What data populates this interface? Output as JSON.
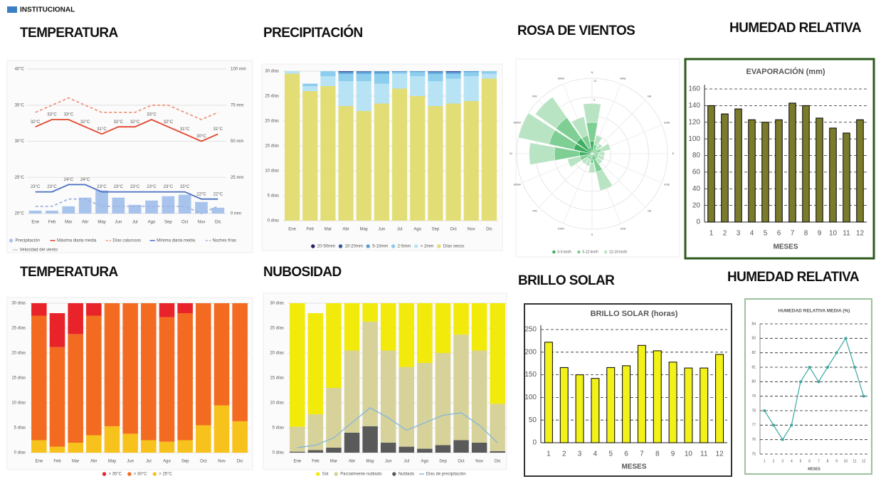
{
  "header": "INSTITUCIONAL",
  "chart_data": [
    {
      "type": "combo",
      "title": "TEMPERATURA",
      "categories": [
        "Ene",
        "Feb",
        "Mar",
        "Abr",
        "May",
        "Jun",
        "Jul",
        "Ago",
        "Sep",
        "Oct",
        "Nov",
        "Dic"
      ],
      "ylim": [
        20,
        40
      ],
      "yticks": [
        {
          "value": 20,
          "label": "20°C"
        },
        {
          "value": 25,
          "label": "25°C"
        },
        {
          "value": 30,
          "label": "30°C"
        },
        {
          "value": 35,
          "label": "35°C"
        },
        {
          "value": 40,
          "label": "40°C"
        }
      ],
      "y2lim": [
        0,
        100
      ],
      "y2ticks": [
        {
          "value": 0,
          "label": "0 mm"
        },
        {
          "value": 25,
          "label": "25 mm"
        },
        {
          "value": 50,
          "label": "50 mm"
        },
        {
          "value": 75,
          "label": "75 mm"
        },
        {
          "value": 100,
          "label": "100 mm"
        }
      ],
      "grid": true,
      "series": [
        {
          "name": "Precipitación",
          "kind": "bar",
          "axis": "y2",
          "color": "#a9c4ec",
          "values": [
            2,
            2,
            5,
            11,
            16,
            11,
            6,
            9,
            12,
            13,
            8,
            4
          ]
        },
        {
          "name": "Máxima diaria media",
          "kind": "line",
          "color": "#e0452c",
          "values": [
            32,
            33,
            33,
            32,
            31,
            32,
            32,
            33,
            32,
            31,
            30,
            31
          ],
          "value_labels": [
            "32°C",
            "33°C",
            "33°C",
            "32°C",
            "31°C",
            "32°C",
            "32°C",
            "33°C",
            "32°C",
            "31°C",
            "30°C",
            "31°C"
          ]
        },
        {
          "name": "Días calurosos",
          "kind": "line",
          "dash": true,
          "color": "#f0957a",
          "values": [
            34,
            35,
            36,
            35,
            34,
            34,
            34,
            35,
            35,
            34,
            33,
            34
          ]
        },
        {
          "name": "Mínima diaria media",
          "kind": "line",
          "color": "#4a6fc0",
          "values": [
            23,
            23,
            24,
            24,
            23,
            23,
            23,
            23,
            23,
            23,
            22,
            22
          ],
          "value_labels": [
            "23°C",
            "23°C",
            "24°C",
            "24°C",
            "23°C",
            "23°C",
            "23°C",
            "23°C",
            "23°C",
            "23°C",
            "22°C",
            "22°C"
          ]
        },
        {
          "name": "Noches frías",
          "kind": "line",
          "dash": true,
          "color": "#9fb3e0",
          "values": [
            21,
            21,
            22,
            22,
            21,
            21,
            21,
            21,
            21,
            21,
            20,
            21
          ]
        }
      ],
      "legend_extra": "Velocidad del viento"
    },
    {
      "type": "stacked",
      "title": "PRECIPITACIÓN",
      "categories": [
        "Ene",
        "Feb",
        "Mar",
        "Abr",
        "May",
        "Jun",
        "Jul",
        "Ago",
        "Sep",
        "Oct",
        "Nov",
        "Dic"
      ],
      "ylim": [
        0,
        30
      ],
      "yticks": [
        {
          "value": 0,
          "label": "0 días"
        },
        {
          "value": 5,
          "label": "5 días"
        },
        {
          "value": 10,
          "label": "10 días"
        },
        {
          "value": 15,
          "label": "15 días"
        },
        {
          "value": 20,
          "label": "20 días"
        },
        {
          "value": 25,
          "label": "25 días"
        },
        {
          "value": 30,
          "label": "30 días"
        }
      ],
      "grid": true,
      "series": [
        {
          "name": "20-50mm",
          "color": "#23236b",
          "values": [
            0,
            0,
            0,
            0,
            0,
            0,
            0,
            0,
            0,
            0,
            0,
            0
          ]
        },
        {
          "name": "10-20mm",
          "color": "#3a55a4",
          "values": [
            0,
            0,
            0,
            0.2,
            0.1,
            0,
            0,
            0,
            0.1,
            0.2,
            0,
            0
          ]
        },
        {
          "name": "5-10mm",
          "color": "#5b9fd6",
          "values": [
            0,
            0,
            0,
            0.3,
            0.4,
            0.5,
            0.2,
            0.2,
            0.4,
            0.3,
            0.2,
            0
          ]
        },
        {
          "name": "2-5mm",
          "color": "#8dcdee",
          "values": [
            0,
            0.5,
            1,
            1.5,
            1.5,
            2,
            0.3,
            0.8,
            1.5,
            1,
            0.8,
            0.5
          ]
        },
        {
          "name": "< 2mm",
          "color": "#b7e3f5",
          "values": [
            0.5,
            1,
            2,
            5,
            6,
            4,
            3,
            4,
            5,
            5,
            5,
            1
          ]
        },
        {
          "name": "Días secos",
          "color": "#e2dd75",
          "values": [
            29.5,
            26,
            27,
            23,
            22,
            23.5,
            26.5,
            25,
            23,
            23.5,
            24,
            28.5
          ]
        }
      ]
    },
    {
      "type": "polar",
      "title": "ROSA DE VIENTOS",
      "directions": [
        "N",
        "NNE",
        "NE",
        "ENE",
        "E",
        "ESE",
        "SE",
        "SSE",
        "S",
        "SSW",
        "SW",
        "WSW",
        "W",
        "WNW",
        "NW",
        "NNW"
      ],
      "rlim": [
        0,
        12
      ],
      "rticks": [
        3,
        6,
        9,
        12
      ],
      "series": [
        {
          "name": "0-5 km/h",
          "color": "#3fae63",
          "values": [
            2,
            0.5,
            0.3,
            0.5,
            0.3,
            0.3,
            0.3,
            1,
            0.5,
            0.3,
            0.3,
            0.5,
            2,
            3,
            3,
            1
          ]
        },
        {
          "name": "5-12 km/h",
          "color": "#7fcf95",
          "values": [
            3,
            1,
            0.7,
            1,
            0.7,
            0.7,
            0.7,
            2,
            1,
            0.7,
            0.7,
            1.5,
            4,
            4,
            4,
            2
          ]
        },
        {
          "name": "12-19 km/h",
          "color": "#b9e4c4",
          "values": [
            3,
            1.5,
            1,
            1.5,
            1,
            1,
            1,
            3,
            1.5,
            1,
            1,
            2,
            4,
            5,
            4,
            3
          ]
        }
      ]
    },
    {
      "type": "bar",
      "title": "HUMEDAD RELATIVA",
      "chart_title": "EVAPORACIÓN (mm)",
      "xlabel": "MESES",
      "categories": [
        "1",
        "2",
        "3",
        "4",
        "5",
        "6",
        "7",
        "8",
        "9",
        "10",
        "11",
        "12"
      ],
      "values": [
        140,
        130,
        136,
        123,
        120,
        123,
        143,
        140,
        125,
        113,
        107,
        123
      ],
      "color": "#7b7b2c",
      "ylim": [
        0,
        160
      ],
      "yticks": [
        0,
        20,
        40,
        60,
        80,
        100,
        120,
        140,
        160
      ],
      "grid": true
    },
    {
      "type": "stacked",
      "title": "TEMPERATURA",
      "categories": [
        "Ene",
        "Feb",
        "Mar",
        "Abr",
        "May",
        "Jun",
        "Jul",
        "Ago",
        "Sep",
        "Oct",
        "Nov",
        "Dic"
      ],
      "ylim": [
        0,
        30
      ],
      "yticks": [
        {
          "value": 0,
          "label": "0 días"
        },
        {
          "value": 5,
          "label": "5 días"
        },
        {
          "value": 10,
          "label": "10 días"
        },
        {
          "value": 15,
          "label": "15 días"
        },
        {
          "value": 20,
          "label": "20 días"
        },
        {
          "value": 25,
          "label": "25 días"
        },
        {
          "value": 30,
          "label": "30 días"
        }
      ],
      "grid": true,
      "series": [
        {
          "name": "> 35°C",
          "color": "#e8232a",
          "values": [
            2.5,
            6.8,
            6.2,
            2.5,
            0,
            0,
            0,
            2.8,
            2,
            0,
            0,
            0
          ]
        },
        {
          "name": "> 30°C",
          "color": "#f26b21",
          "values": [
            25,
            20,
            21.8,
            24,
            24.7,
            26.2,
            27.5,
            25,
            25.5,
            24.5,
            20.5,
            23.7
          ]
        },
        {
          "name": "> 25°C",
          "color": "#f8c21c",
          "values": [
            2.5,
            1.2,
            2,
            3.5,
            5.3,
            3.8,
            2.5,
            2.2,
            2.5,
            5.5,
            9.5,
            6.3
          ]
        }
      ]
    },
    {
      "type": "stacked",
      "title": "NUBOSIDAD",
      "categories": [
        "Ene",
        "Feb",
        "Mar",
        "Abr",
        "May",
        "Jun",
        "Jul",
        "Ago",
        "Sep",
        "Oct",
        "Nov",
        "Dic"
      ],
      "ylim": [
        0,
        30
      ],
      "yticks": [
        {
          "value": 0,
          "label": "0 días"
        },
        {
          "value": 5,
          "label": "5 días"
        },
        {
          "value": 10,
          "label": "10 días"
        },
        {
          "value": 15,
          "label": "15 días"
        },
        {
          "value": 20,
          "label": "20 días"
        },
        {
          "value": 25,
          "label": "25 días"
        },
        {
          "value": 30,
          "label": "30 días"
        }
      ],
      "grid": true,
      "series": [
        {
          "name": "Sol",
          "color": "#f2ea0a",
          "values": [
            24.8,
            20.3,
            17,
            9.5,
            3.7,
            9.5,
            12.8,
            12,
            10,
            6.3,
            9.5,
            20.2
          ]
        },
        {
          "name": "Parcialmente nublado",
          "color": "#d6d29a",
          "values": [
            5,
            7.2,
            12,
            16.5,
            21,
            18.5,
            16,
            17.2,
            18.5,
            21.2,
            18.5,
            9.5
          ]
        },
        {
          "name": "Nublado",
          "color": "#5a5a5a",
          "values": [
            0.2,
            0.5,
            1,
            4,
            5.3,
            2,
            1.2,
            0.8,
            1.5,
            2.5,
            2,
            0.3
          ]
        },
        {
          "name": "Días de precipitación",
          "kind": "line",
          "color": "#8ab8d8",
          "values": [
            1,
            1.5,
            3,
            6,
            9,
            7,
            4.5,
            6,
            7.5,
            8,
            5.5,
            2
          ]
        }
      ]
    },
    {
      "type": "bar",
      "title": "BRILLO SOLAR",
      "chart_title": "BRILLO SOLAR (horas)",
      "xlabel": "MESES",
      "categories": [
        "1",
        "2",
        "3",
        "4",
        "5",
        "6",
        "7",
        "8",
        "9",
        "10",
        "11",
        "12"
      ],
      "values": [
        222,
        166,
        150,
        142,
        166,
        170,
        215,
        203,
        178,
        165,
        165,
        195
      ],
      "color": "#f2f21a",
      "ylim": [
        0,
        250
      ],
      "yticks": [
        0,
        50,
        100,
        150,
        200,
        250
      ],
      "grid": true
    },
    {
      "type": "line",
      "title": "HUMEDAD RELATIVA",
      "chart_title": "HUMEDAD RELATIVA MEDIA (%)",
      "xlabel": "MESES",
      "categories": [
        "1",
        "2",
        "3",
        "4",
        "5",
        "6",
        "7",
        "8",
        "9",
        "10",
        "11",
        "12"
      ],
      "values": [
        78,
        77,
        76,
        77,
        80,
        81,
        80,
        81,
        82,
        83,
        81,
        79
      ],
      "color": "#3aa6a0",
      "ylim": [
        75,
        84
      ],
      "yticks": [
        75,
        76,
        77,
        78,
        79,
        80,
        81,
        82,
        83,
        84
      ],
      "grid": true
    }
  ]
}
